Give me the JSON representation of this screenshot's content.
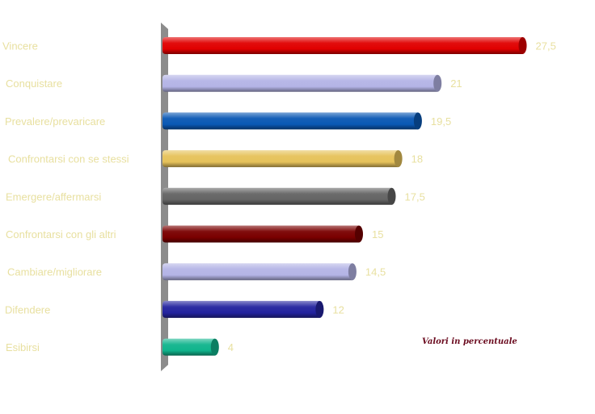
{
  "chart_data": {
    "type": "bar",
    "orientation": "horizontal",
    "categories": [
      "Vincere",
      "Conquistare",
      "Prevalere/prevaricare",
      "Confrontarsi con se stessi",
      "Emergere/affermarsi",
      "Confrontarsi con gli altri",
      "Cambiare/migliorare",
      "Difendere",
      "Esibirsi"
    ],
    "values": [
      27.5,
      21,
      19.5,
      18,
      17.5,
      15,
      14.5,
      12,
      4
    ],
    "value_labels": [
      "27,5",
      "21",
      "19,5",
      "18",
      "17,5",
      "15",
      "14,5",
      "12",
      "4"
    ],
    "colors": [
      "#e00000",
      "#b4b4e6",
      "#0a58b4",
      "#e6c25a",
      "#646464",
      "#7a0000",
      "#b4b4e6",
      "#23239e",
      "#10b48c"
    ],
    "annotation": "Valori in percentuale",
    "grid": false,
    "legend": "none"
  }
}
